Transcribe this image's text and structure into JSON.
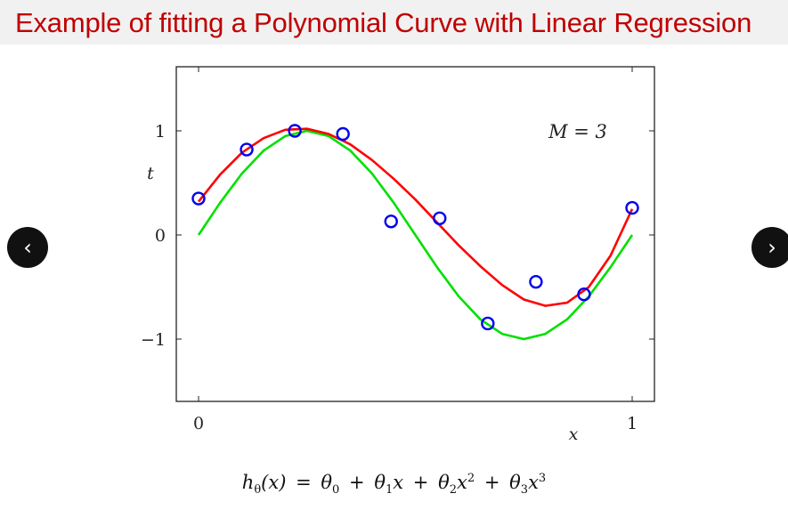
{
  "slide": {
    "title": "Example of fitting a Polynomial Curve with Linear Regression"
  },
  "navigation": {
    "prev_icon": "‹",
    "next_icon": "›"
  },
  "formula": {
    "h": "h",
    "theta": "θ",
    "x": "x",
    "equals": "=",
    "plus": "+",
    "sub0": "0",
    "sub1": "1",
    "sub2": "2",
    "sub3": "3",
    "sup2": "2",
    "sup3": "3",
    "lparen": "(",
    "rparen": ")"
  },
  "colors": {
    "fit": "#ff0000",
    "truth": "#00e000",
    "points": "#0000ee",
    "title": "#c00000"
  },
  "chart_data": {
    "type": "scatter",
    "annotation": "M = 3",
    "xlabel": "x",
    "ylabel": "t",
    "xlim": [
      -0.05,
      1.05
    ],
    "ylim": [
      -1.6,
      1.6
    ],
    "xticks": [
      0,
      1
    ],
    "xtick_labels": [
      "0",
      "1"
    ],
    "yticks": [
      -1,
      0,
      1
    ],
    "ytick_labels": [
      "−1",
      "0",
      "1"
    ],
    "grid": false,
    "series": [
      {
        "kind": "points",
        "x": [
          0.0,
          0.111,
          0.222,
          0.333,
          0.444,
          0.556,
          0.667,
          0.778,
          0.889,
          1.0
        ],
        "y": [
          0.35,
          0.82,
          1.0,
          0.97,
          0.13,
          0.16,
          -0.85,
          -0.45,
          -0.57,
          0.26
        ]
      },
      {
        "kind": "true-curve",
        "x": [
          0.0,
          0.05,
          0.1,
          0.15,
          0.2,
          0.25,
          0.3,
          0.35,
          0.4,
          0.45,
          0.5,
          0.55,
          0.6,
          0.65,
          0.7,
          0.75,
          0.8,
          0.85,
          0.9,
          0.95,
          1.0
        ],
        "y": [
          0.0,
          0.31,
          0.59,
          0.81,
          0.95,
          1.0,
          0.95,
          0.81,
          0.59,
          0.31,
          0.0,
          -0.31,
          -0.59,
          -0.81,
          -0.95,
          -1.0,
          -0.95,
          -0.81,
          -0.59,
          -0.31,
          0.0
        ]
      },
      {
        "kind": "fitted-curve",
        "x": [
          0.0,
          0.05,
          0.1,
          0.15,
          0.2,
          0.25,
          0.3,
          0.35,
          0.4,
          0.45,
          0.5,
          0.55,
          0.6,
          0.65,
          0.7,
          0.75,
          0.8,
          0.85,
          0.9,
          0.95,
          1.0
        ],
        "y": [
          0.32,
          0.58,
          0.79,
          0.93,
          1.01,
          1.02,
          0.97,
          0.87,
          0.72,
          0.54,
          0.34,
          0.12,
          -0.1,
          -0.3,
          -0.48,
          -0.62,
          -0.68,
          -0.65,
          -0.5,
          -0.2,
          0.25
        ]
      }
    ]
  }
}
